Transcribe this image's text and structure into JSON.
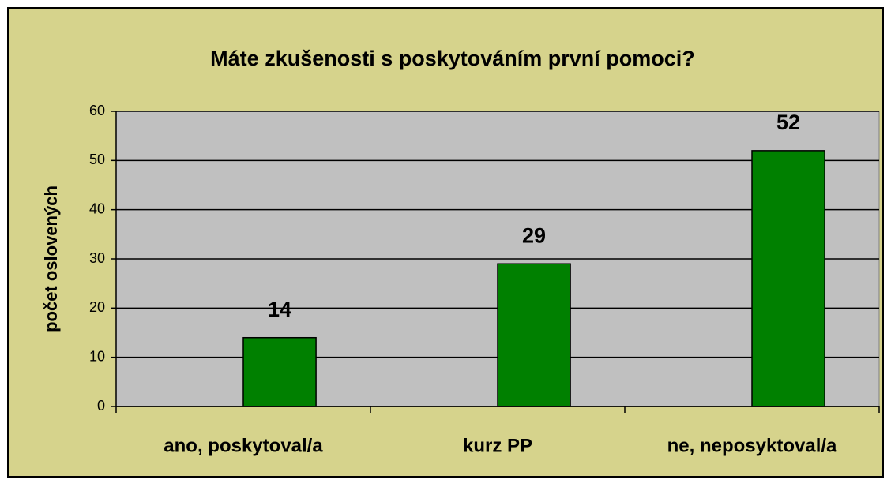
{
  "chart_data": {
    "type": "bar",
    "title": "Máte zkušenosti s poskytováním první pomoci?",
    "y_label": "počet oslovených",
    "categories": [
      "ano, poskytoval/a",
      "kurz PP",
      "ne, neposyktoval/a"
    ],
    "values": [
      14,
      29,
      52
    ],
    "color": "#008000",
    "ylim": [
      0,
      60
    ],
    "yticks": [
      0,
      10,
      20,
      30,
      40,
      50,
      60
    ],
    "grid": true
  }
}
